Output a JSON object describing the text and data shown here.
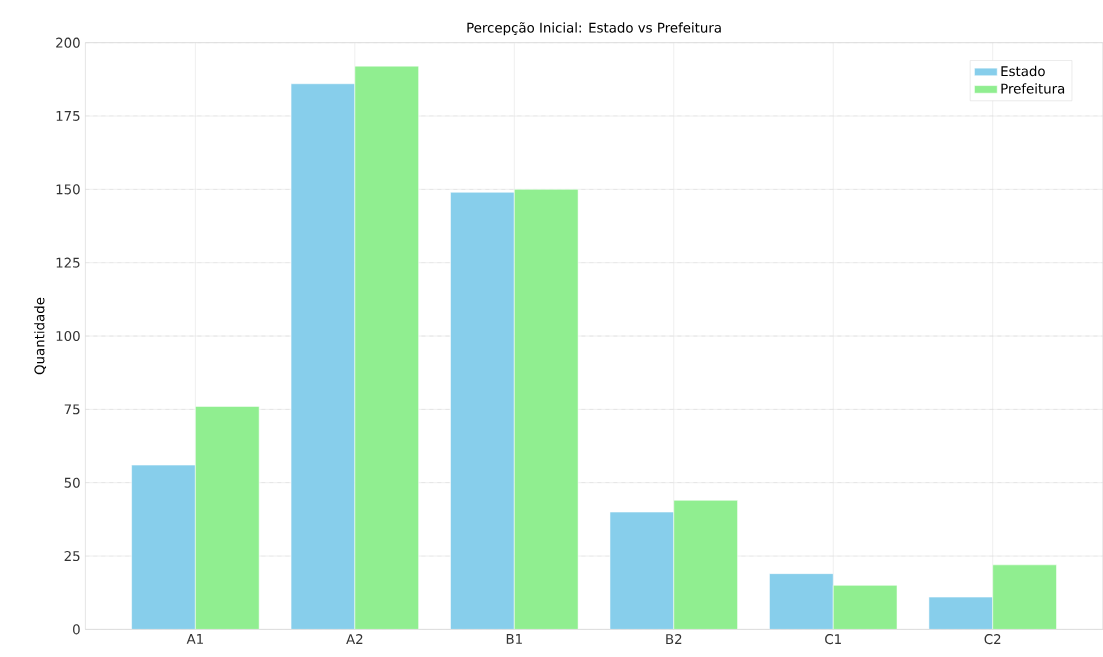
{
  "chart_data": {
    "type": "bar",
    "title": "Percepção Inicial: Estado vs Prefeitura",
    "ylabel": "Quantidade",
    "categories": [
      "A1",
      "A2",
      "B1",
      "B2",
      "C1",
      "C2"
    ],
    "series": [
      {
        "name": "Estado",
        "color": "#87ceeb",
        "values": [
          56,
          186,
          149,
          40,
          19,
          11
        ]
      },
      {
        "name": "Prefeitura",
        "color": "#90ee90",
        "values": [
          76,
          192,
          150,
          44,
          15,
          22
        ]
      }
    ],
    "ylim": [
      0,
      200
    ],
    "yticks": [
      0,
      25,
      50,
      75,
      100,
      125,
      150,
      175,
      200
    ],
    "grid": true,
    "legend": "top right"
  }
}
